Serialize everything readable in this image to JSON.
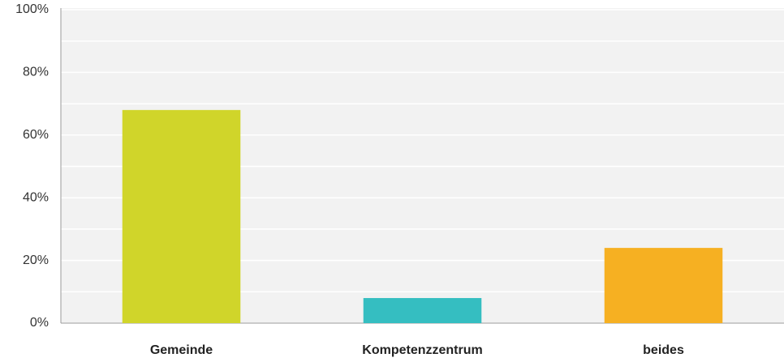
{
  "chart_data": {
    "type": "bar",
    "categories": [
      "Gemeinde",
      "Kompetenzzentrum",
      "beides"
    ],
    "values": [
      68,
      8,
      24
    ],
    "colors": [
      "#d0d52a",
      "#35bec1",
      "#f6b022"
    ],
    "ylim": [
      0,
      100
    ],
    "yticks": [
      {
        "value": 0,
        "label": "0%"
      },
      {
        "value": 20,
        "label": "20%"
      },
      {
        "value": 40,
        "label": "40%"
      },
      {
        "value": 60,
        "label": "60%"
      },
      {
        "value": 80,
        "label": "80%"
      },
      {
        "value": 100,
        "label": "100%"
      }
    ],
    "minor_yticks": [
      10,
      30,
      50,
      70,
      90
    ],
    "grid": true
  }
}
